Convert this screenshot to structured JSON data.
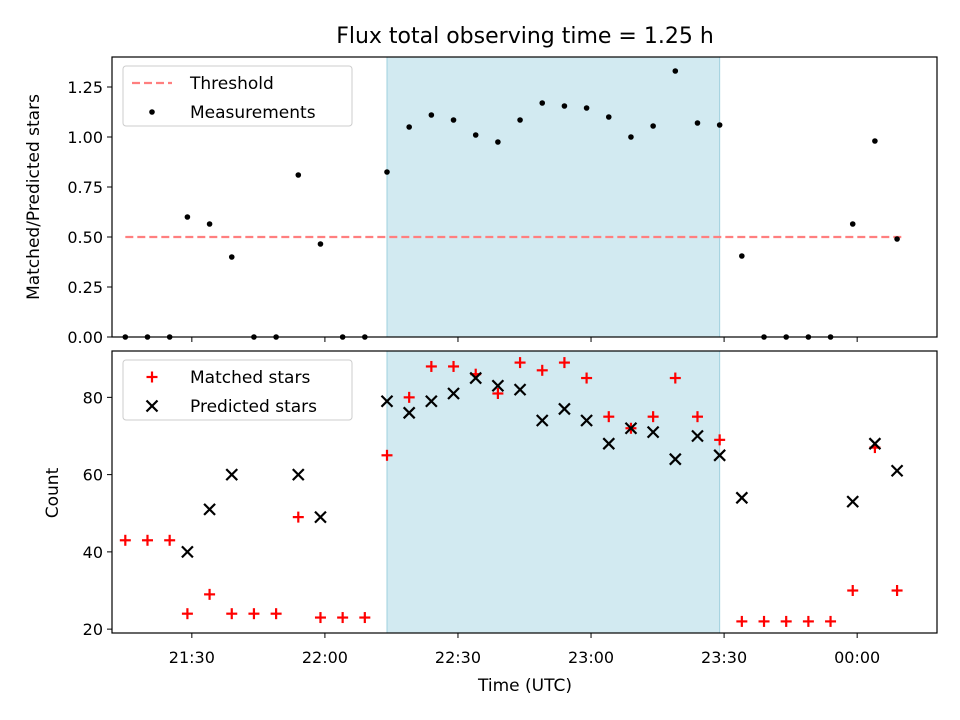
{
  "chart_data": {
    "title": "Flux total observing time = 1.25 h",
    "type": "scatter",
    "shaded_interval": {
      "start": "22:14",
      "end": "23:29",
      "color": "#add8e6"
    },
    "x_label": "Time (UTC)",
    "x_ticks": [
      "21:30",
      "22:00",
      "22:30",
      "23:00",
      "23:30",
      "00:00"
    ],
    "x_range": [
      "21:12",
      "00:18"
    ],
    "panels": [
      {
        "ylabel": "Matched/Predicted stars",
        "ylim": [
          0,
          1.4
        ],
        "y_ticks": [
          "0.00",
          "0.25",
          "0.50",
          "0.75",
          "1.00",
          "1.25"
        ],
        "legend_position": "top-left",
        "series": [
          {
            "name": "Threshold",
            "style": "dashed-line",
            "color": "#ff7f7f",
            "points": [
              [
                "21:15",
                0.5
              ],
              [
                "00:10",
                0.5
              ]
            ]
          },
          {
            "name": "Measurements",
            "style": "dot",
            "color": "#000000",
            "points": [
              [
                "21:15",
                0.0
              ],
              [
                "21:20",
                0.0
              ],
              [
                "21:25",
                0.0
              ],
              [
                "21:29",
                0.6
              ],
              [
                "21:34",
                0.565
              ],
              [
                "21:39",
                0.4
              ],
              [
                "21:44",
                0.0
              ],
              [
                "21:49",
                0.0
              ],
              [
                "21:54",
                0.81
              ],
              [
                "21:59",
                0.465
              ],
              [
                "22:04",
                0.0
              ],
              [
                "22:09",
                0.0
              ],
              [
                "22:14",
                0.825
              ],
              [
                "22:19",
                1.05
              ],
              [
                "22:24",
                1.11
              ],
              [
                "22:29",
                1.085
              ],
              [
                "22:34",
                1.01
              ],
              [
                "22:39",
                0.975
              ],
              [
                "22:44",
                1.085
              ],
              [
                "22:49",
                1.17
              ],
              [
                "22:54",
                1.155
              ],
              [
                "22:59",
                1.145
              ],
              [
                "23:04",
                1.1
              ],
              [
                "23:09",
                1.0
              ],
              [
                "23:14",
                1.055
              ],
              [
                "23:19",
                1.33
              ],
              [
                "23:24",
                1.07
              ],
              [
                "23:29",
                1.06
              ],
              [
                "23:34",
                0.405
              ],
              [
                "23:39",
                0.0
              ],
              [
                "23:44",
                0.0
              ],
              [
                "23:49",
                0.0
              ],
              [
                "23:54",
                0.0
              ],
              [
                "23:59",
                0.565
              ],
              [
                "00:04",
                0.98
              ],
              [
                "00:09",
                0.49
              ]
            ]
          }
        ]
      },
      {
        "ylabel": "Count",
        "ylim": [
          19,
          92
        ],
        "y_ticks": [
          "20",
          "40",
          "60",
          "80"
        ],
        "legend_position": "top-left",
        "series": [
          {
            "name": "Matched stars",
            "style": "plus",
            "color": "#ff0000",
            "points": [
              [
                "21:15",
                43
              ],
              [
                "21:20",
                43
              ],
              [
                "21:25",
                43
              ],
              [
                "21:29",
                24
              ],
              [
                "21:34",
                29
              ],
              [
                "21:39",
                24
              ],
              [
                "21:44",
                24
              ],
              [
                "21:49",
                24
              ],
              [
                "21:54",
                49
              ],
              [
                "21:59",
                23
              ],
              [
                "22:04",
                23
              ],
              [
                "22:09",
                23
              ],
              [
                "22:14",
                65
              ],
              [
                "22:19",
                80
              ],
              [
                "22:24",
                88
              ],
              [
                "22:29",
                88
              ],
              [
                "22:34",
                86
              ],
              [
                "22:39",
                81
              ],
              [
                "22:44",
                89
              ],
              [
                "22:49",
                87
              ],
              [
                "22:54",
                89
              ],
              [
                "22:59",
                85
              ],
              [
                "23:04",
                75
              ],
              [
                "23:09",
                72
              ],
              [
                "23:14",
                75
              ],
              [
                "23:19",
                85
              ],
              [
                "23:24",
                75
              ],
              [
                "23:29",
                69
              ],
              [
                "23:34",
                22
              ],
              [
                "23:39",
                22
              ],
              [
                "23:44",
                22
              ],
              [
                "23:49",
                22
              ],
              [
                "23:54",
                22
              ],
              [
                "23:59",
                30
              ],
              [
                "00:04",
                67
              ],
              [
                "00:09",
                30
              ]
            ]
          },
          {
            "name": "Predicted stars",
            "style": "x",
            "color": "#000000",
            "points": [
              [
                "21:29",
                40
              ],
              [
                "21:34",
                51
              ],
              [
                "21:39",
                60
              ],
              [
                "21:54",
                60
              ],
              [
                "21:59",
                49
              ],
              [
                "22:14",
                79
              ],
              [
                "22:19",
                76
              ],
              [
                "22:24",
                79
              ],
              [
                "22:29",
                81
              ],
              [
                "22:34",
                85
              ],
              [
                "22:39",
                83
              ],
              [
                "22:44",
                82
              ],
              [
                "22:49",
                74
              ],
              [
                "22:54",
                77
              ],
              [
                "22:59",
                74
              ],
              [
                "23:04",
                68
              ],
              [
                "23:09",
                72
              ],
              [
                "23:14",
                71
              ],
              [
                "23:19",
                64
              ],
              [
                "23:24",
                70
              ],
              [
                "23:29",
                65
              ],
              [
                "23:34",
                54
              ],
              [
                "23:59",
                53
              ],
              [
                "00:04",
                68
              ],
              [
                "00:09",
                61
              ]
            ]
          }
        ]
      }
    ]
  }
}
